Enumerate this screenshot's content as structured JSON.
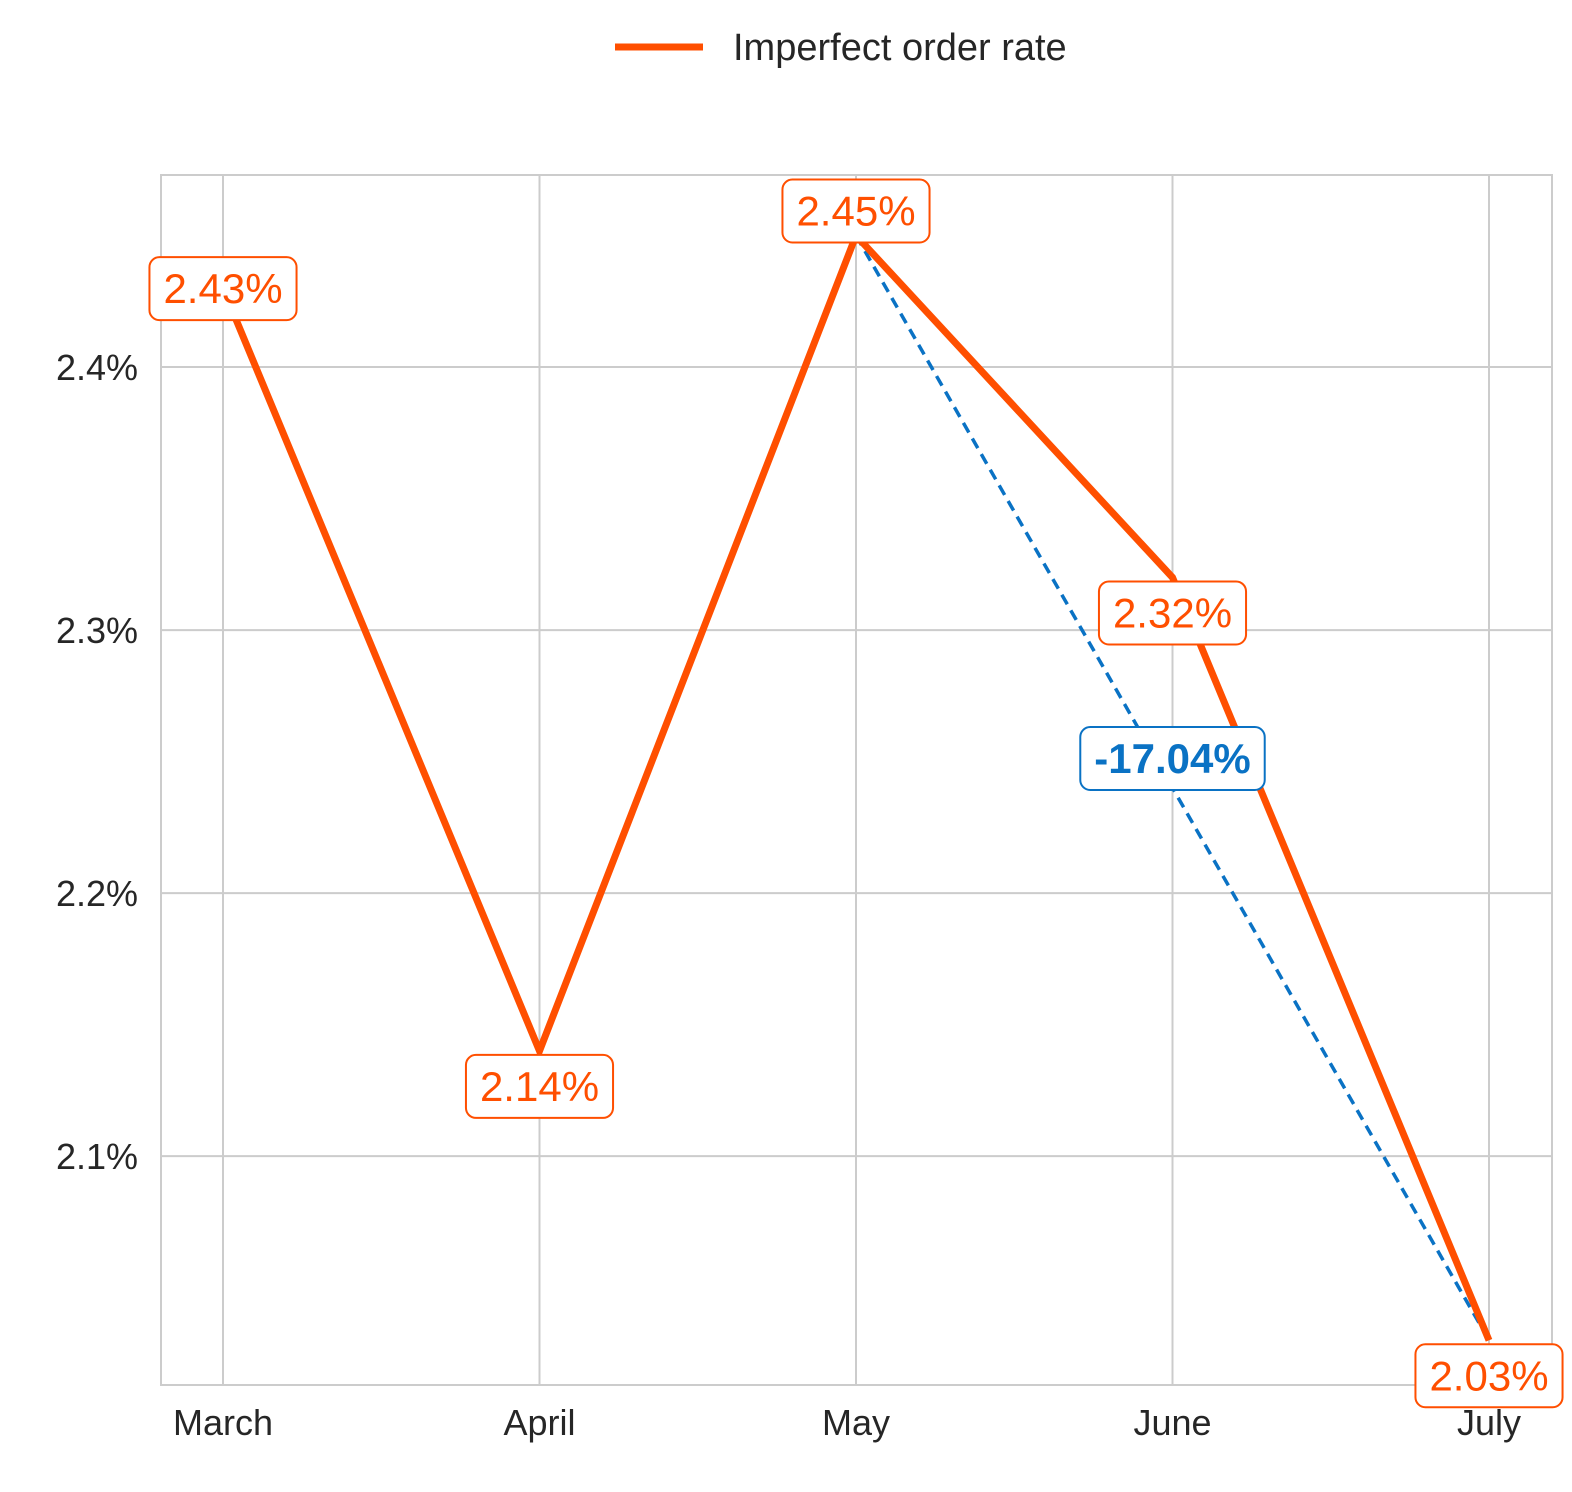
{
  "chart_data": {
    "type": "line",
    "categories": [
      "March",
      "April",
      "May",
      "June",
      "July"
    ],
    "series": [
      {
        "name": "Imperfect order rate",
        "values": [
          2.43,
          2.14,
          2.45,
          2.32,
          2.03
        ],
        "labels": [
          "2.43%",
          "2.14%",
          "2.45%",
          "2.32%",
          "2.03%"
        ],
        "color": "#ff4f00"
      }
    ],
    "y_ticks": [
      2.1,
      2.2,
      2.3,
      2.4
    ],
    "y_tick_labels": [
      "2.1%",
      "2.2%",
      "2.3%",
      "2.4%"
    ],
    "ylim": [
      2.013,
      2.473
    ],
    "grid": true,
    "legend_position": "top-center",
    "annotation": {
      "from_category": "May",
      "to_category": "July",
      "text": "-17.04%",
      "color": "#0a72c4",
      "line_style": "dashed"
    },
    "colors": {
      "grid": "#cccccc",
      "axis": "#cccccc",
      "text": "#262626",
      "label_background": "#ffffff"
    }
  }
}
